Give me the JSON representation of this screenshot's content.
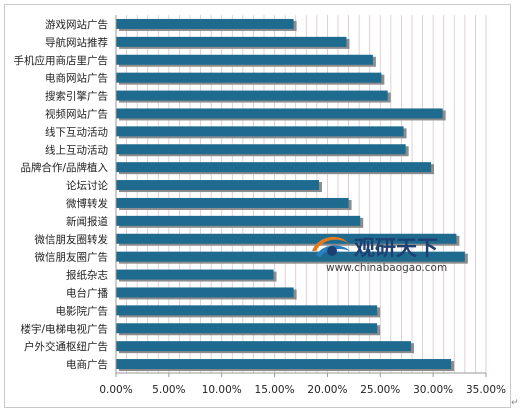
{
  "chart_data": {
    "type": "bar",
    "orientation": "horizontal",
    "categories": [
      "游戏网站广告",
      "导航网站推荐",
      "手机应用商店里广告",
      "电商网站广告",
      "搜索引擎广告",
      "视频网站广告",
      "线下互动活动",
      "线上互动活动",
      "品牌合作/品牌植入",
      "论坛讨论",
      "微博转发",
      "新闻报道",
      "微信朋友圈转发",
      "微信朋友圈广告",
      "报纸杂志",
      "电台广播",
      "电影院广告",
      "楼宇/电梯电视广告",
      "户外交通枢纽广告",
      "电商广告"
    ],
    "values": [
      16.8,
      21.8,
      24.3,
      25.1,
      25.7,
      30.9,
      27.2,
      27.4,
      29.8,
      19.2,
      22.0,
      23.1,
      32.2,
      33.0,
      14.9,
      16.8,
      24.7,
      24.7,
      27.9,
      31.7
    ],
    "xlim": [
      0,
      35
    ],
    "xticks": [
      "0.00%",
      "5.00%",
      "10.00%",
      "15.00%",
      "20.00%",
      "25.00%",
      "30.00%",
      "35.00%"
    ],
    "grid": "vertical",
    "title": "",
    "xlabel": "",
    "ylabel": "",
    "colors": {
      "bar": "#1e6b8f",
      "shadow": "#8c8c8c",
      "grid": "#dcc3c8",
      "axis": "#9a9a9a"
    }
  },
  "watermark": {
    "brand_cn": "观研天下",
    "url": "www.chinabaogao.com",
    "icon": "swoosh-logo-icon"
  },
  "return_mark": "↵"
}
